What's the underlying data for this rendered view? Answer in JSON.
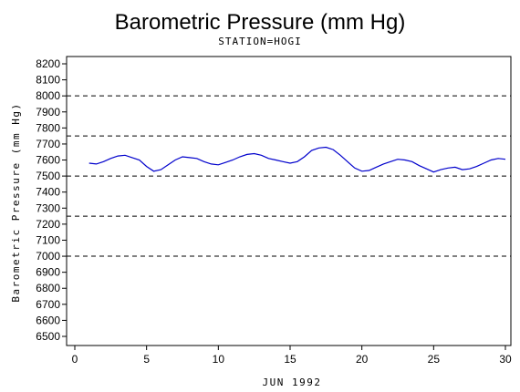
{
  "chart_data": {
    "type": "line",
    "title": "Barometric Pressure (mm Hg)",
    "subtitle": "STATION=HOGI",
    "xlabel": "JUN 1992",
    "ylabel": "Barometric Pressure (mm Hg)",
    "xlim": [
      0,
      30
    ],
    "ylim": [
      6500,
      8200
    ],
    "x_ticks": [
      0,
      5,
      10,
      15,
      20,
      25,
      30
    ],
    "y_ticks": [
      6500,
      6600,
      6700,
      6800,
      6900,
      7000,
      7100,
      7200,
      7300,
      7400,
      7500,
      7600,
      7700,
      7800,
      7900,
      8000,
      8100,
      8200
    ],
    "reference_lines": [
      8000,
      7750,
      7500,
      7250,
      7000
    ],
    "line_color": "#0000cc",
    "series": [
      {
        "x": [
          1.0,
          1.5,
          2.0,
          2.5,
          3.0,
          3.5,
          4.0,
          4.5,
          5.0,
          5.5,
          6.0,
          6.5,
          7.0,
          7.5,
          8.0,
          8.5,
          9.0,
          9.5,
          10.0,
          10.5,
          11.0,
          11.5,
          12.0,
          12.5,
          13.0,
          13.5,
          14.0,
          14.5,
          15.0,
          15.5,
          16.0,
          16.5,
          17.0,
          17.5,
          18.0,
          18.5,
          19.0,
          19.5,
          20.0,
          20.5,
          21.0,
          21.5,
          22.0,
          22.5,
          23.0,
          23.5,
          24.0,
          24.5,
          25.0,
          25.5,
          26.0,
          26.5,
          27.0,
          27.5,
          28.0,
          28.5,
          29.0,
          29.5,
          30.0
        ],
        "y": [
          7580,
          7575,
          7590,
          7610,
          7625,
          7630,
          7615,
          7600,
          7560,
          7530,
          7540,
          7570,
          7600,
          7620,
          7615,
          7610,
          7590,
          7575,
          7570,
          7585,
          7600,
          7620,
          7635,
          7640,
          7630,
          7610,
          7600,
          7590,
          7580,
          7590,
          7620,
          7660,
          7675,
          7680,
          7665,
          7630,
          7590,
          7550,
          7530,
          7535,
          7555,
          7575,
          7590,
          7605,
          7600,
          7590,
          7565,
          7545,
          7525,
          7540,
          7550,
          7555,
          7540,
          7545,
          7560,
          7580,
          7600,
          7610,
          7605
        ]
      }
    ]
  }
}
